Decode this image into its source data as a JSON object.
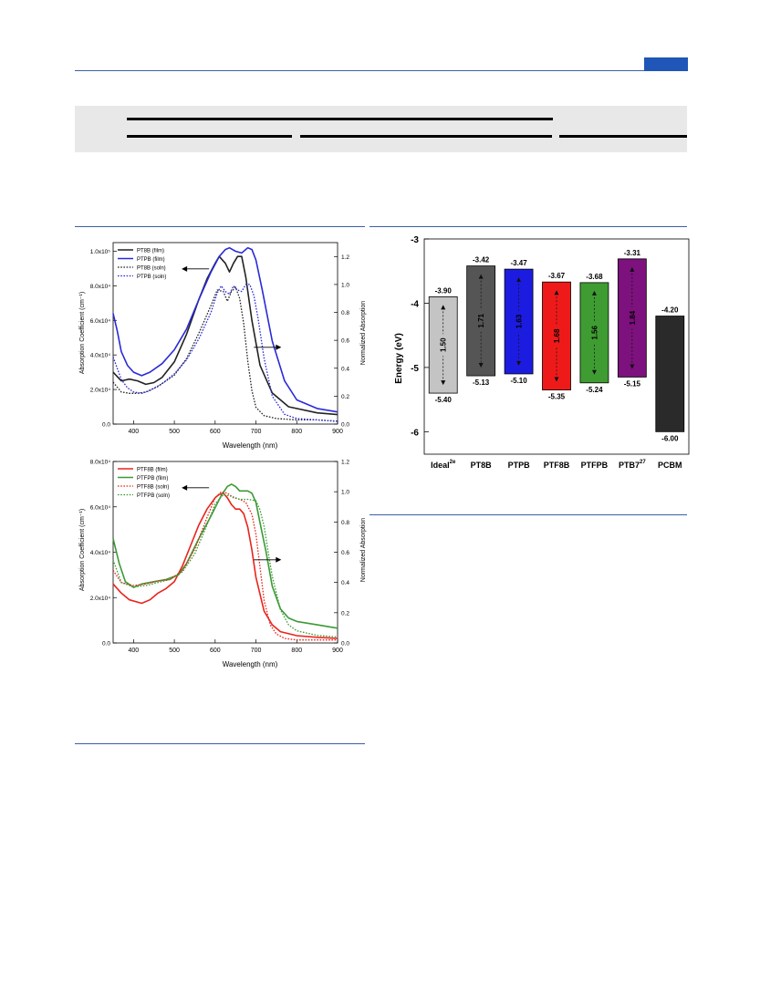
{
  "colors": {
    "page_rule": "#3b5fa8",
    "page_number_box": "#1f56b7",
    "table_band": "#e8e8e8"
  },
  "chart_data": [
    {
      "type": "line",
      "xlabel": "Wavelength (nm)",
      "ylabel": "Absorption Coefficient (cm⁻¹)",
      "y2label": "Normalized Absorption",
      "xlim": [
        350,
        900
      ],
      "ylim": [
        0,
        105000
      ],
      "y2lim": [
        0,
        1.3
      ],
      "xticks": [
        "400",
        "500",
        "600",
        "700",
        "800",
        "900"
      ],
      "yticks": [
        "0.0",
        "2.0x10⁴",
        "4.0x10⁴",
        "6.0x10⁴",
        "8.0x10⁴",
        "1.0x10⁵"
      ],
      "y2ticks": [
        "0.0",
        "0.2",
        "0.4",
        "0.6",
        "0.8",
        "1.0",
        "1.2"
      ],
      "legend_position": "top-left",
      "series": [
        {
          "name": "PT8B (film)",
          "color": "#222222",
          "style": "solid",
          "axis": "left",
          "x": [
            350,
            370,
            390,
            410,
            430,
            450,
            470,
            500,
            530,
            560,
            580,
            600,
            610,
            625,
            635,
            645,
            655,
            665,
            675,
            690,
            710,
            740,
            780,
            850,
            900
          ],
          "values": [
            30000,
            25000,
            26000,
            25000,
            23000,
            24000,
            27000,
            36000,
            52000,
            72000,
            84000,
            93000,
            97000,
            93000,
            88000,
            93000,
            97000,
            97000,
            85000,
            60000,
            34000,
            18000,
            10000,
            6500,
            5500
          ]
        },
        {
          "name": "PTPB (film)",
          "color": "#2a2ad8",
          "style": "solid",
          "axis": "left",
          "x": [
            350,
            360,
            370,
            385,
            400,
            420,
            440,
            470,
            500,
            530,
            560,
            590,
            610,
            625,
            635,
            650,
            665,
            680,
            690,
            700,
            715,
            740,
            770,
            800,
            850,
            900
          ],
          "values": [
            64000,
            54000,
            42000,
            34000,
            30000,
            28000,
            30000,
            35000,
            43000,
            55000,
            72000,
            88000,
            97000,
            101000,
            102000,
            100000,
            99000,
            102000,
            101000,
            95000,
            78000,
            48000,
            25000,
            14000,
            9000,
            7000
          ]
        },
        {
          "name": "PT8B (soln)",
          "color": "#222222",
          "style": "dotted",
          "axis": "right",
          "x": [
            350,
            370,
            390,
            410,
            430,
            460,
            500,
            530,
            560,
            590,
            605,
            620,
            630,
            640,
            650,
            660,
            670,
            680,
            690,
            700,
            720,
            750,
            800,
            850,
            900
          ],
          "values": [
            0.3,
            0.23,
            0.22,
            0.22,
            0.23,
            0.27,
            0.35,
            0.47,
            0.65,
            0.85,
            0.96,
            0.95,
            0.88,
            0.95,
            0.98,
            0.9,
            0.72,
            0.45,
            0.24,
            0.12,
            0.06,
            0.04,
            0.03,
            0.03,
            0.02
          ]
        },
        {
          "name": "PTPB (soln)",
          "color": "#2a2ad8",
          "style": "dotted",
          "axis": "right",
          "x": [
            350,
            360,
            370,
            385,
            400,
            420,
            440,
            470,
            500,
            530,
            560,
            590,
            605,
            615,
            625,
            635,
            645,
            655,
            665,
            675,
            685,
            695,
            705,
            720,
            740,
            770,
            800,
            850,
            900
          ],
          "values": [
            0.48,
            0.4,
            0.32,
            0.26,
            0.23,
            0.22,
            0.24,
            0.29,
            0.36,
            0.46,
            0.61,
            0.8,
            0.94,
            0.99,
            0.95,
            0.93,
            0.99,
            0.96,
            0.95,
            1.0,
            1.0,
            0.92,
            0.76,
            0.47,
            0.2,
            0.07,
            0.04,
            0.03,
            0.02
          ]
        }
      ],
      "annotations": [
        "arrow-left",
        "arrow-right"
      ]
    },
    {
      "type": "line",
      "xlabel": "Wavelength (nm)",
      "ylabel": "Absorption Coefficient (cm⁻¹)",
      "y2label": "Normalized Absorption",
      "xlim": [
        350,
        900
      ],
      "ylim": [
        0,
        80000
      ],
      "y2lim": [
        0,
        1.2
      ],
      "xticks": [
        "400",
        "500",
        "600",
        "700",
        "800",
        "900"
      ],
      "yticks": [
        "0.0",
        "2.0x10⁴",
        "4.0x10⁴",
        "6.0x10⁴",
        "8.0x10⁴"
      ],
      "y2ticks": [
        "0.0",
        "0.2",
        "0.4",
        "0.6",
        "0.8",
        "1.0",
        "1.2"
      ],
      "legend_position": "top-left",
      "series": [
        {
          "name": "PTF8B (film)",
          "color": "#e8241c",
          "style": "solid",
          "axis": "left",
          "x": [
            350,
            370,
            390,
            420,
            440,
            460,
            480,
            500,
            520,
            540,
            560,
            580,
            600,
            610,
            620,
            630,
            640,
            650,
            660,
            670,
            680,
            690,
            700,
            720,
            740,
            760,
            800,
            850,
            900
          ],
          "values": [
            26000,
            22000,
            19000,
            17500,
            19000,
            22000,
            24000,
            27000,
            34000,
            43000,
            52000,
            59000,
            64000,
            65500,
            66000,
            64000,
            61000,
            59000,
            59000,
            57000,
            51000,
            41000,
            29000,
            14000,
            8000,
            5000,
            3200,
            2500,
            2000
          ]
        },
        {
          "name": "PTFPB (film)",
          "color": "#3b9a35",
          "style": "solid",
          "axis": "left",
          "x": [
            350,
            365,
            380,
            400,
            420,
            450,
            480,
            510,
            530,
            560,
            590,
            615,
            630,
            640,
            650,
            660,
            670,
            680,
            690,
            700,
            710,
            725,
            740,
            760,
            780,
            800,
            850,
            900
          ],
          "values": [
            46000,
            35000,
            27000,
            24500,
            26000,
            27000,
            28000,
            30000,
            35000,
            46000,
            56000,
            65000,
            69000,
            70000,
            69000,
            67000,
            67000,
            67000,
            66000,
            62000,
            53000,
            40000,
            25000,
            15000,
            11000,
            9500,
            8000,
            6500
          ]
        },
        {
          "name": "PTF8B (soln)",
          "color": "#e8241c",
          "style": "dotted",
          "axis": "right",
          "x": [
            350,
            370,
            400,
            430,
            460,
            490,
            520,
            550,
            580,
            600,
            615,
            630,
            645,
            660,
            675,
            690,
            700,
            710,
            720,
            735,
            750,
            770,
            800,
            850,
            900
          ],
          "values": [
            0.48,
            0.4,
            0.38,
            0.39,
            0.41,
            0.42,
            0.48,
            0.62,
            0.83,
            0.96,
            1.0,
            0.99,
            0.96,
            0.95,
            0.93,
            0.85,
            0.72,
            0.5,
            0.28,
            0.12,
            0.06,
            0.03,
            0.02,
            0.02,
            0.02
          ]
        },
        {
          "name": "PTFPB (soln)",
          "color": "#3b9a35",
          "style": "dotted",
          "axis": "right",
          "x": [
            350,
            370,
            400,
            430,
            460,
            490,
            520,
            550,
            580,
            600,
            620,
            640,
            660,
            680,
            700,
            710,
            720,
            730,
            740,
            760,
            780,
            800,
            850,
            900
          ],
          "values": [
            0.55,
            0.4,
            0.37,
            0.38,
            0.4,
            0.42,
            0.47,
            0.59,
            0.78,
            0.92,
            0.98,
            0.97,
            0.95,
            0.95,
            0.94,
            0.88,
            0.77,
            0.6,
            0.44,
            0.22,
            0.12,
            0.08,
            0.05,
            0.04
          ]
        }
      ],
      "annotations": [
        "arrow-left",
        "arrow-right"
      ]
    },
    {
      "type": "bar",
      "subtype": "floating-energy-levels",
      "ylabel": "Energy (eV)",
      "ylim": [
        -6.35,
        -3.0
      ],
      "yticks": [
        "-3",
        "-4",
        "-5",
        "-6"
      ],
      "categories": [
        {
          "name": "Ideal",
          "sup": "2e",
          "top": -3.9,
          "bottom": -5.4,
          "top_label": "-3.90",
          "bottom_label": "-5.40",
          "gap_label": "1.50",
          "color": "#c4c4c4"
        },
        {
          "name": "PT8B",
          "sup": "",
          "top": -3.42,
          "bottom": -5.13,
          "top_label": "-3.42",
          "bottom_label": "-5.13",
          "gap_label": "1.71",
          "color": "#555555"
        },
        {
          "name": "PTPB",
          "sup": "",
          "top": -3.47,
          "bottom": -5.1,
          "top_label": "-3.47",
          "bottom_label": "-5.10",
          "gap_label": "1.63",
          "color": "#1c1ce0"
        },
        {
          "name": "PTF8B",
          "sup": "",
          "top": -3.67,
          "bottom": -5.35,
          "top_label": "-3.67",
          "bottom_label": "-5.35",
          "gap_label": "1.68",
          "color": "#ee1a1a"
        },
        {
          "name": "PTFPB",
          "sup": "",
          "top": -3.68,
          "bottom": -5.24,
          "top_label": "-3.68",
          "bottom_label": "-5.24",
          "gap_label": "1.56",
          "color": "#3f9c32"
        },
        {
          "name": "PTB7",
          "sup": "27",
          "top": -3.31,
          "bottom": -5.15,
          "top_label": "-3.31",
          "bottom_label": "-5.15",
          "gap_label": "1.84",
          "color": "#7d117d"
        },
        {
          "name": "PCBM",
          "sup": "",
          "top": -4.2,
          "bottom": -6.0,
          "top_label": "-4.20",
          "bottom_label": "-6.00",
          "gap_label": "",
          "color": "#2a2a2a"
        }
      ]
    }
  ]
}
